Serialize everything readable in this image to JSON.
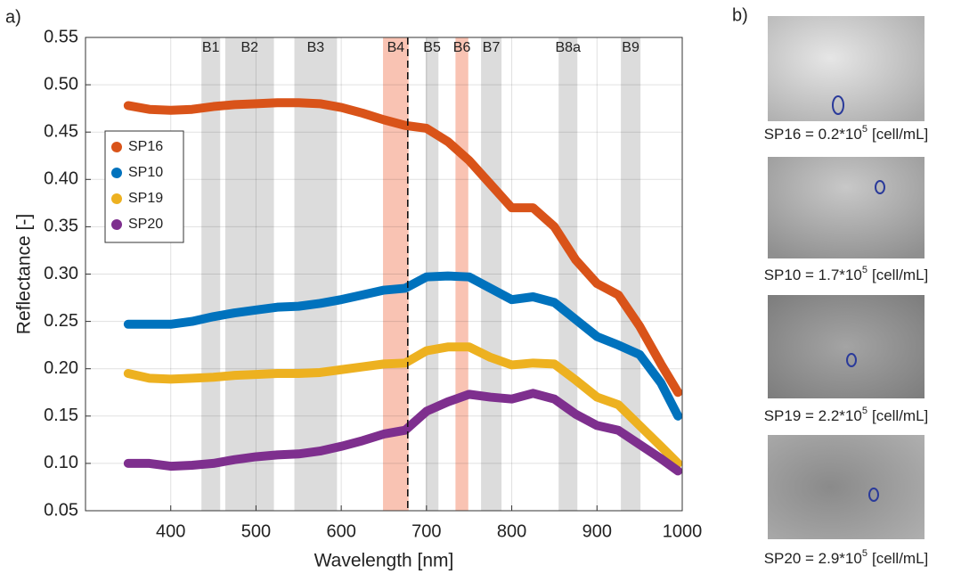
{
  "chart_data": {
    "type": "line",
    "panel_label": "a)",
    "xlabel": "Wavelength [nm]",
    "ylabel": "Reflectance [-]",
    "x": [
      350,
      375,
      400,
      425,
      450,
      475,
      500,
      525,
      550,
      575,
      600,
      625,
      650,
      675,
      700,
      725,
      750,
      775,
      800,
      825,
      850,
      875,
      900,
      925,
      950,
      975,
      995
    ],
    "series": [
      {
        "name": "SP16",
        "color": "#d95319",
        "values": [
          0.478,
          0.474,
          0.473,
          0.474,
          0.477,
          0.479,
          0.48,
          0.481,
          0.481,
          0.48,
          0.476,
          0.47,
          0.463,
          0.457,
          0.454,
          0.44,
          0.42,
          0.395,
          0.37,
          0.37,
          0.35,
          0.315,
          0.29,
          0.278,
          0.245,
          0.205,
          0.175
        ]
      },
      {
        "name": "SP10",
        "color": "#0072bd",
        "values": [
          0.247,
          0.247,
          0.247,
          0.25,
          0.255,
          0.259,
          0.262,
          0.265,
          0.266,
          0.269,
          0.273,
          0.278,
          0.283,
          0.285,
          0.297,
          0.298,
          0.297,
          0.285,
          0.273,
          0.276,
          0.27,
          0.252,
          0.234,
          0.225,
          0.215,
          0.185,
          0.15
        ]
      },
      {
        "name": "SP19",
        "color": "#edb120",
        "values": [
          0.195,
          0.19,
          0.189,
          0.19,
          0.191,
          0.193,
          0.194,
          0.195,
          0.195,
          0.196,
          0.199,
          0.202,
          0.205,
          0.206,
          0.219,
          0.223,
          0.223,
          0.212,
          0.204,
          0.206,
          0.205,
          0.188,
          0.17,
          0.162,
          0.14,
          0.118,
          0.1
        ]
      },
      {
        "name": "SP20",
        "color": "#7e2f8e",
        "values": [
          0.1,
          0.1,
          0.097,
          0.098,
          0.1,
          0.104,
          0.107,
          0.109,
          0.11,
          0.113,
          0.118,
          0.124,
          0.131,
          0.135,
          0.155,
          0.165,
          0.173,
          0.17,
          0.168,
          0.174,
          0.168,
          0.152,
          0.14,
          0.135,
          0.12,
          0.105,
          0.092
        ]
      }
    ],
    "xlim": [
      300,
      1000
    ],
    "xticks": [
      400,
      500,
      600,
      700,
      800,
      900,
      1000
    ],
    "ylim": [
      0.05,
      0.55
    ],
    "yticks": [
      0.05,
      {
        "value": 0.1,
        "label": "0.10"
      },
      0.15,
      {
        "value": 0.2,
        "label": "0.20"
      },
      0.25,
      {
        "value": 0.3,
        "label": "0.30"
      },
      0.35,
      {
        "value": 0.4,
        "label": "0.40"
      },
      0.45,
      {
        "value": 0.5,
        "label": "0.50"
      },
      0.55
    ],
    "grid": true,
    "legend": "upper left",
    "dashed_line_x": 678,
    "bands": [
      {
        "label": "B1",
        "range": [
          436,
          458
        ],
        "color": "#dcdcdc"
      },
      {
        "label": "B2",
        "range": [
          464,
          521
        ],
        "color": "#dcdcdc"
      },
      {
        "label": "B3",
        "range": [
          545,
          595
        ],
        "color": "#dcdcdc"
      },
      {
        "label": "B4",
        "range": [
          649,
          679
        ],
        "color": "#f9c3b3"
      },
      {
        "label": "B5",
        "range": [
          699,
          714
        ],
        "color": "#dcdcdc"
      },
      {
        "label": "B6",
        "range": [
          734,
          749
        ],
        "color": "#f9c3b3"
      },
      {
        "label": "B7",
        "range": [
          764,
          788
        ],
        "color": "#dcdcdc"
      },
      {
        "label": "B8a",
        "range": [
          855,
          877
        ],
        "color": "#dcdcdc"
      },
      {
        "label": "B9",
        "range": [
          928,
          951
        ],
        "color": "#dcdcdc"
      }
    ]
  },
  "panel_b": {
    "label": "b)",
    "captions": [
      {
        "text": "SP16 = 0.2*10",
        "exp": "5",
        "unit": "[cell/mL]"
      },
      {
        "text": "SP10 = 1.7*10",
        "exp": "5",
        "unit": "[cell/mL]"
      },
      {
        "text": "SP19 = 2.2*10",
        "exp": "5",
        "unit": "[cell/mL]"
      },
      {
        "text": "SP20 = 2.9*10",
        "exp": "5",
        "unit": "[cell/mL]"
      }
    ]
  }
}
